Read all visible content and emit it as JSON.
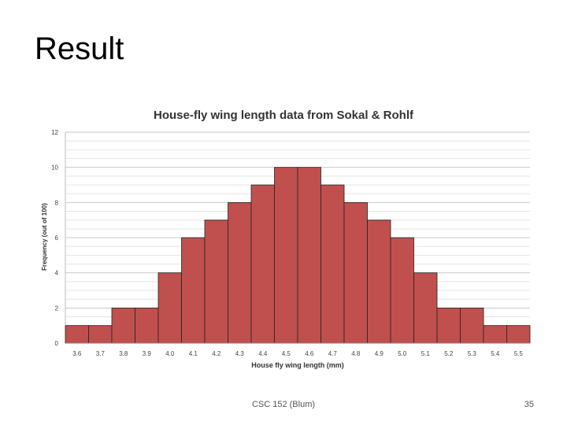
{
  "slide": {
    "title": "Result",
    "footer": "CSC 152 (Blum)",
    "page_number": "35"
  },
  "chart_data": {
    "type": "bar",
    "title": "House-fly wing length data from Sokal & Rohlf",
    "xlabel": "House fly wing length (mm)",
    "ylabel": "Frequency (out of 100)",
    "categories": [
      "3.6",
      "3.7",
      "3.8",
      "3.9",
      "4.0",
      "4.1",
      "4.2",
      "4.3",
      "4.4",
      "4.5",
      "4.6",
      "4.7",
      "4.8",
      "4.9",
      "5.0",
      "5.1",
      "5.2",
      "5.3",
      "5.4",
      "5.5"
    ],
    "values": [
      1,
      1,
      2,
      2,
      4,
      6,
      7,
      8,
      9,
      10,
      10,
      9,
      8,
      7,
      6,
      4,
      2,
      2,
      1,
      1
    ],
    "ylim": [
      0,
      12
    ],
    "yticks": [
      0,
      2,
      4,
      6,
      8,
      10,
      12
    ],
    "grid": true,
    "bar_color": "#c0504d",
    "bar_edge_color": "#222222"
  }
}
